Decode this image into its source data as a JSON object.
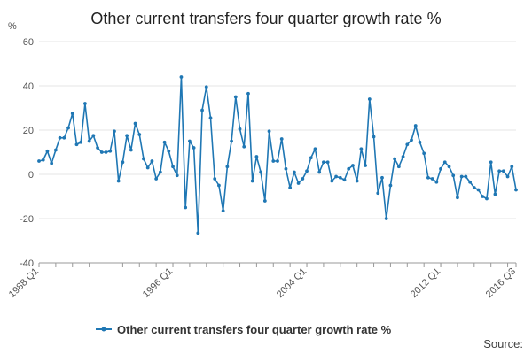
{
  "chart_data": {
    "type": "line",
    "title": "Other current transfers four quarter growth rate %",
    "ylabel": "%",
    "xlabel": "",
    "ylim": [
      -40,
      60
    ],
    "yticks": [
      -40,
      -20,
      0,
      20,
      40,
      60
    ],
    "grid": true,
    "legend_position": "bottom",
    "x_tick_labels": [
      {
        "index": 0,
        "label": "1988 Q1"
      },
      {
        "index": 32,
        "label": "1996 Q1"
      },
      {
        "index": 64,
        "label": "2004 Q1"
      },
      {
        "index": 96,
        "label": "2012 Q1"
      },
      {
        "index": 114,
        "label": "2016 Q3"
      }
    ],
    "x_minor_tick_every": 4,
    "colors": {
      "series": "#1f77b4",
      "grid": "#e6e6e6",
      "axis": "#999999"
    },
    "series": [
      {
        "name": "Other current transfers four quarter growth rate %",
        "start": "1988 Q1",
        "end": "2016 Q3",
        "values": [
          6,
          6.5,
          10.5,
          5,
          11,
          16.5,
          16.5,
          21,
          27.5,
          13.5,
          14.5,
          32,
          15,
          17.5,
          12,
          10,
          10,
          10.5,
          19.5,
          -3,
          5.5,
          17.5,
          11,
          23,
          18,
          7,
          3,
          6,
          -2,
          1,
          14.5,
          10.5,
          3.5,
          -0.5,
          44,
          -15,
          15,
          12,
          -26.5,
          29,
          39.5,
          25.5,
          -2,
          -5,
          -16.5,
          3.5,
          15,
          35,
          20.5,
          12.5,
          36.5,
          -3,
          8,
          1,
          -12,
          19.5,
          6,
          6,
          16,
          2.5,
          -6,
          1,
          -4,
          -2,
          1.5,
          7.5,
          11.5,
          1,
          5.5,
          5.5,
          -3,
          -1,
          -1.5,
          -2.5,
          2.5,
          4,
          -3,
          11.5,
          4,
          34,
          17,
          -8.5,
          -1.5,
          -20,
          -5,
          7,
          3.5,
          8,
          13.5,
          15.5,
          22,
          14.5,
          9.5,
          -1.5,
          -2,
          -3.5,
          2.5,
          5.5,
          3.5,
          -0.5,
          -10.5,
          -1,
          -1,
          -3.5,
          -6,
          -7,
          -10,
          -11,
          5.5,
          -9,
          1.5,
          1.5,
          -1,
          3.5,
          -7
        ]
      }
    ],
    "source_label": "Source:"
  }
}
